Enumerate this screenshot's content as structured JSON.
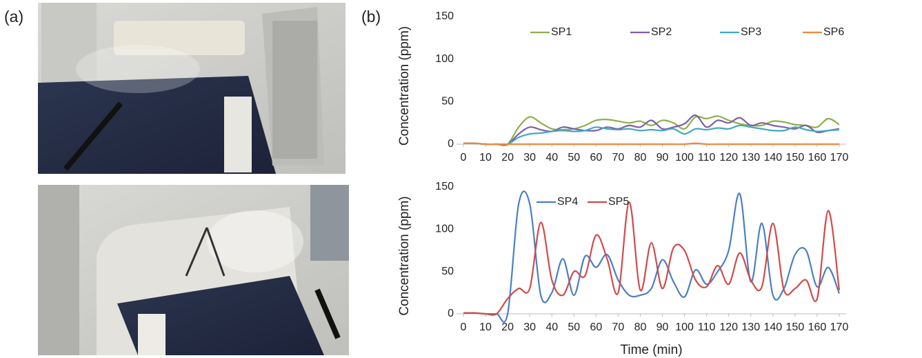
{
  "panel_labels": [
    "(a)",
    "(b)"
  ],
  "chart_data": [
    {
      "type": "line",
      "y_label": "Concentration (ppm)",
      "x": [
        0,
        5,
        10,
        15,
        20,
        25,
        30,
        35,
        40,
        45,
        50,
        55,
        60,
        65,
        70,
        75,
        80,
        85,
        90,
        95,
        100,
        105,
        110,
        115,
        120,
        125,
        130,
        135,
        140,
        145,
        150,
        155,
        160,
        165,
        170
      ],
      "xlim": [
        0,
        170
      ],
      "xticks": [
        0,
        10,
        20,
        30,
        40,
        50,
        60,
        70,
        80,
        90,
        100,
        110,
        120,
        130,
        140,
        150,
        160,
        170
      ],
      "ylim": [
        0,
        150
      ],
      "yticks": [
        0,
        50,
        100,
        150
      ],
      "series": [
        {
          "name": "SP1",
          "color": "#8cb04a",
          "values": [
            1,
            1,
            0,
            0,
            0,
            20,
            32,
            25,
            18,
            17,
            18,
            22,
            28,
            29,
            27,
            25,
            27,
            22,
            28,
            25,
            18,
            32,
            30,
            33,
            28,
            24,
            22,
            22,
            27,
            26,
            23,
            22,
            20,
            30,
            23
          ]
        },
        {
          "name": "SP2",
          "color": "#7e5ea8",
          "values": [
            1,
            1,
            0,
            0,
            0,
            12,
            20,
            17,
            15,
            20,
            18,
            16,
            16,
            20,
            18,
            22,
            20,
            28,
            18,
            20,
            24,
            34,
            20,
            28,
            25,
            31,
            22,
            25,
            22,
            20,
            18,
            22,
            14,
            16,
            18
          ]
        },
        {
          "name": "SP3",
          "color": "#3fa8c2",
          "values": [
            1,
            1,
            0,
            0,
            0,
            8,
            12,
            13,
            15,
            16,
            15,
            16,
            20,
            18,
            17,
            18,
            16,
            17,
            16,
            18,
            12,
            18,
            17,
            19,
            18,
            22,
            20,
            18,
            16,
            16,
            20,
            17,
            15,
            16,
            17
          ]
        },
        {
          "name": "SP6",
          "color": "#f0883a",
          "values": [
            1,
            1,
            0,
            0,
            0,
            0,
            0,
            0,
            0,
            0,
            0,
            0,
            0,
            0,
            0,
            0,
            0,
            0,
            0,
            0,
            0,
            1,
            0,
            0,
            0,
            0,
            0,
            0,
            0,
            0,
            0,
            0,
            0,
            0,
            0
          ]
        }
      ]
    },
    {
      "type": "line",
      "y_label": "Concentration (ppm)",
      "x_label": "Time (min)",
      "x": [
        0,
        5,
        10,
        15,
        20,
        25,
        30,
        35,
        40,
        45,
        50,
        55,
        60,
        65,
        70,
        75,
        80,
        85,
        90,
        95,
        100,
        105,
        110,
        115,
        120,
        125,
        130,
        135,
        140,
        145,
        150,
        155,
        160,
        165,
        170
      ],
      "xlim": [
        0,
        170
      ],
      "xticks": [
        0,
        10,
        20,
        30,
        40,
        50,
        60,
        70,
        80,
        90,
        100,
        110,
        120,
        130,
        140,
        150,
        160,
        170
      ],
      "ylim": [
        0,
        150
      ],
      "yticks": [
        0,
        50,
        100,
        150
      ],
      "series": [
        {
          "name": "SP4",
          "color": "#4a7fc4",
          "values": [
            1,
            1,
            0,
            0,
            0,
            130,
            130,
            22,
            25,
            65,
            22,
            68,
            55,
            70,
            40,
            22,
            22,
            30,
            64,
            38,
            20,
            52,
            35,
            50,
            75,
            142,
            38,
            107,
            22,
            30,
            70,
            75,
            32,
            55,
            24
          ]
        },
        {
          "name": "SP5",
          "color": "#d04a4a",
          "values": [
            1,
            1,
            0,
            0,
            18,
            30,
            30,
            108,
            40,
            22,
            50,
            45,
            93,
            65,
            25,
            132,
            28,
            84,
            30,
            78,
            75,
            40,
            32,
            57,
            35,
            72,
            40,
            32,
            107,
            28,
            30,
            40,
            18,
            122,
            28
          ]
        }
      ]
    }
  ]
}
